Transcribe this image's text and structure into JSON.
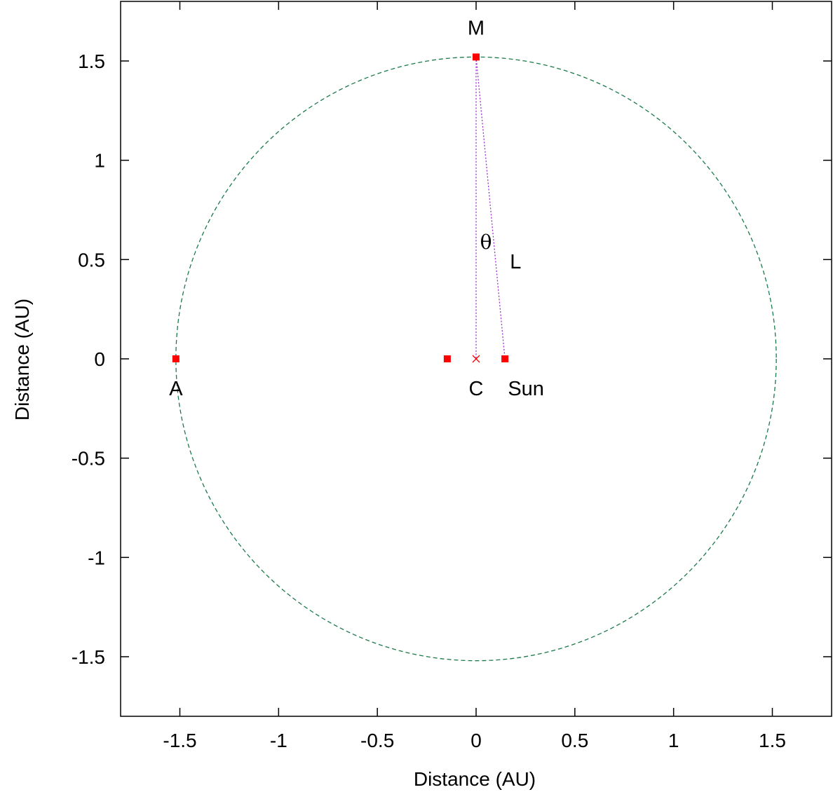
{
  "chart_data": {
    "type": "scatter",
    "title": "",
    "xlabel": "Distance (AU)",
    "ylabel": "Distance (AU)",
    "xlim": [
      -1.8,
      1.8
    ],
    "ylim": [
      -1.8,
      1.8
    ],
    "xticks": [
      -1.5,
      -1,
      -0.5,
      0,
      0.5,
      1,
      1.5
    ],
    "yticks": [
      -1.5,
      -1,
      -0.5,
      0,
      0.5,
      1,
      1.5
    ],
    "xtick_labels": [
      "-1.5",
      "-1",
      "-0.5",
      "0",
      "0.5",
      "1",
      "1.5"
    ],
    "ytick_labels": [
      "-1.5",
      "-1",
      "-0.5",
      "0",
      "0.5",
      "1",
      "1.5"
    ],
    "grid": false,
    "legend": "none",
    "orbit": {
      "center": [
        0,
        0
      ],
      "radius": 1.52,
      "color": "#1a7a4a",
      "style": "dashed"
    },
    "points": [
      {
        "label": "A",
        "x": -1.52,
        "y": 0
      },
      {
        "label": "",
        "x": -0.146,
        "y": 0
      },
      {
        "label": "Sun",
        "x": 0.146,
        "y": 0
      },
      {
        "label": "M",
        "x": 0,
        "y": 1.52
      }
    ],
    "center_marker": {
      "label": "C",
      "x": 0,
      "y": 0
    },
    "lines": [
      {
        "from": [
          0,
          1.52
        ],
        "to": [
          0,
          0
        ],
        "color": "#9b30d0",
        "style": "dotted"
      },
      {
        "from": [
          0,
          1.52
        ],
        "to": [
          0.146,
          0
        ],
        "color": "#9b30d0",
        "style": "dotted"
      }
    ],
    "annotations": [
      {
        "text": "θ",
        "x": 0.05,
        "y": 0.59
      },
      {
        "text": "L",
        "x": 0.2,
        "y": 0.49
      }
    ],
    "point_color": "#ff0000"
  }
}
